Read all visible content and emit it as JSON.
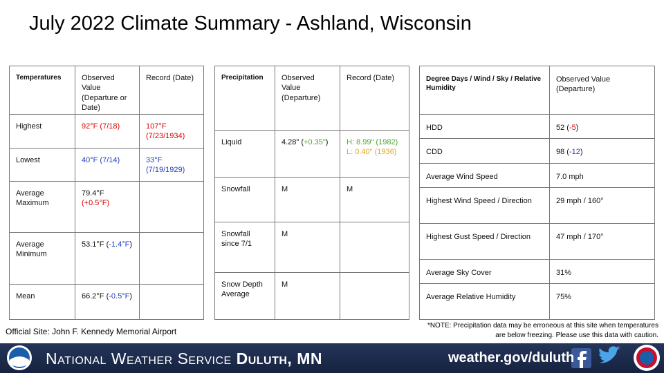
{
  "title": "July 2022 Climate Summary - Ashland, Wisconsin",
  "tables": [
    {
      "header": [
        "Temperatures",
        "Observed Value (Departure or Date)",
        "Record (Date)"
      ],
      "rows": [
        [
          "Highest",
          [
            {
              "text": "92°F (7/18)",
              "color": "#e00000"
            }
          ],
          [
            {
              "text": "107°F (7/23/1934)",
              "color": "#e00000"
            }
          ]
        ],
        [
          "Lowest",
          [
            {
              "text": "40°F (7/14)",
              "color": "#1f3fbf"
            }
          ],
          [
            {
              "text": "33°F (7/19/1929)",
              "color": "#1f3fbf"
            }
          ]
        ],
        [
          "Average Maximum",
          [
            {
              "text": "79.4°F "
            },
            {
              "text": "(+0.5°F)",
              "color": "#e00000"
            }
          ],
          null
        ],
        [
          "Average Minimum",
          [
            {
              "text": "53.1°F ("
            },
            {
              "text": "-1.4°F",
              "color": "#1f3fbf"
            },
            {
              "text": ")"
            }
          ],
          null
        ],
        [
          "Mean",
          [
            {
              "text": "66.2°F ("
            },
            {
              "text": "-0.5°F",
              "color": "#1f3fbf"
            },
            {
              "text": ")"
            }
          ],
          null
        ]
      ]
    },
    {
      "header": [
        "Precipitation",
        "Observed Value (Departure)",
        "Record (Date)"
      ],
      "rows": [
        [
          "Liquid",
          [
            {
              "text": "4.28\" ("
            },
            {
              "text": "+0.35\"",
              "color": "#4ea72e"
            },
            {
              "text": ")"
            }
          ],
          [
            {
              "text": "H: 8.99\" (1982)",
              "color": "#4ea72e"
            },
            {
              "text": " L: 0.40\" (1936)",
              "color": "#e8a317"
            }
          ]
        ],
        [
          "Snowfall",
          "M",
          "M"
        ],
        [
          "Snowfall since 7/1",
          "M",
          null
        ],
        [
          "Snow Depth Average",
          "M",
          null
        ]
      ]
    },
    {
      "header": [
        "Degree Days / Wind / Sky / Relative Humidity",
        "Observed Value (Departure)"
      ],
      "rows": [
        [
          "HDD",
          [
            {
              "text": "52 ("
            },
            {
              "text": "-5",
              "color": "#e00000"
            },
            {
              "text": ")"
            }
          ]
        ],
        [
          "CDD",
          [
            {
              "text": "98 ("
            },
            {
              "text": "-12",
              "color": "#1f3fbf"
            },
            {
              "text": ")"
            }
          ]
        ],
        [
          "Average Wind Speed",
          "7.0 mph"
        ],
        [
          "Highest Wind Speed / Direction",
          "29 mph / 160°"
        ],
        [
          "Highest Gust Speed / Direction",
          "47 mph / 170°"
        ],
        [
          "Average Sky Cover",
          "31%"
        ],
        [
          "Average Relative Humidity",
          "75%"
        ]
      ]
    }
  ],
  "site_note": "Official Site: John F. Kennedy Memorial Airport",
  "precip_note": "*NOTE:  Precipitation data may be erroneous at this site when temperatures are below freezing. Please use this data with caution.",
  "footer": {
    "agency": "National Weather Service",
    "office": "Duluth, MN",
    "url": "weather.gov/duluth"
  }
}
